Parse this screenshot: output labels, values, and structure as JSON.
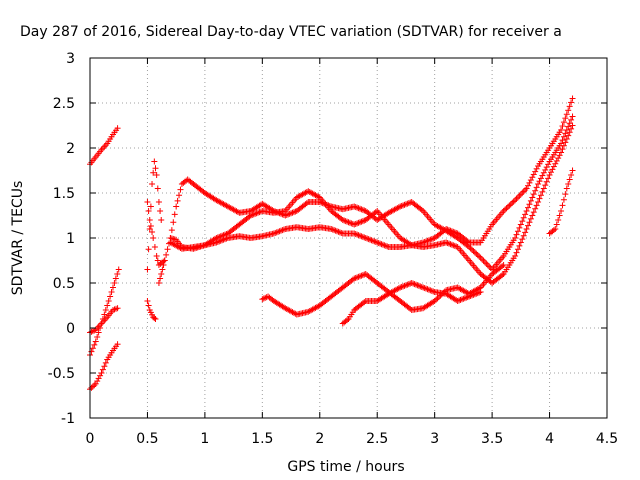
{
  "chart_data": {
    "type": "scatter",
    "title": "Day 287 of 2016, Sidereal Day-to-day VTEC variation (SDTVAR) for receiver a",
    "xlabel": "GPS time / hours",
    "ylabel": "SDTVAR / TECUs",
    "xlim": [
      0,
      4.5
    ],
    "ylim": [
      -1,
      3
    ],
    "xticks": [
      "0",
      "0.5",
      "1",
      "1.5",
      "2",
      "2.5",
      "3",
      "3.5",
      "4",
      "4.5"
    ],
    "yticks": [
      "-1",
      "-0.5",
      "0",
      "0.5",
      "1",
      "1.5",
      "2",
      "2.5",
      "3"
    ],
    "grid": true,
    "marker": "+",
    "color": "#ff0000",
    "series": [
      {
        "segments": [
          [
            [
              0,
              1.82
            ],
            [
              0.05,
              1.9
            ],
            [
              0.1,
              1.98
            ],
            [
              0.15,
              2.05
            ],
            [
              0.2,
              2.15
            ],
            [
              0.24,
              2.22
            ]
          ],
          [
            [
              0,
              -0.05
            ],
            [
              0.05,
              -0.02
            ],
            [
              0.1,
              0.05
            ],
            [
              0.15,
              0.12
            ],
            [
              0.2,
              0.2
            ],
            [
              0.24,
              0.22
            ]
          ],
          [
            [
              0.5,
              0.3
            ],
            [
              0.52,
              0.2
            ],
            [
              0.55,
              0.12
            ],
            [
              0.57,
              0.1
            ]
          ],
          [
            [
              0.6,
              0.5
            ],
            [
              0.62,
              0.6
            ],
            [
              0.65,
              0.75
            ],
            [
              0.7,
              1.0
            ],
            [
              0.75,
              1.35
            ],
            [
              0.8,
              1.6
            ],
            [
              0.85,
              1.65
            ],
            [
              0.9,
              1.6
            ],
            [
              1,
              1.5
            ],
            [
              1.1,
              1.42
            ],
            [
              1.2,
              1.35
            ],
            [
              1.3,
              1.28
            ],
            [
              1.4,
              1.3
            ],
            [
              1.5,
              1.38
            ],
            [
              1.6,
              1.3
            ],
            [
              1.7,
              1.25
            ],
            [
              1.8,
              1.3
            ],
            [
              1.9,
              1.4
            ],
            [
              2,
              1.4
            ],
            [
              2.1,
              1.35
            ],
            [
              2.2,
              1.32
            ],
            [
              2.3,
              1.35
            ],
            [
              2.4,
              1.3
            ],
            [
              2.5,
              1.2
            ],
            [
              2.6,
              1.28
            ],
            [
              2.7,
              1.35
            ],
            [
              2.8,
              1.4
            ],
            [
              2.9,
              1.3
            ],
            [
              3,
              1.15
            ],
            [
              3.1,
              1.08
            ],
            [
              3.2,
              1.0
            ],
            [
              3.3,
              0.9
            ],
            [
              3.4,
              0.78
            ],
            [
              3.5,
              0.65
            ],
            [
              3.6,
              0.8
            ],
            [
              3.7,
              1.0
            ],
            [
              3.8,
              1.3
            ],
            [
              3.9,
              1.6
            ],
            [
              4,
              1.85
            ],
            [
              4.1,
              2.05
            ],
            [
              4.2,
              2.35
            ]
          ]
        ]
      },
      {
        "segments": [
          [
            [
              0,
              -0.3
            ],
            [
              0.05,
              -0.15
            ],
            [
              0.1,
              0.05
            ],
            [
              0.15,
              0.25
            ],
            [
              0.2,
              0.45
            ],
            [
              0.25,
              0.65
            ]
          ],
          [
            [
              0.5,
              0.65
            ],
            [
              0.52,
              1.1
            ],
            [
              0.54,
              1.6
            ],
            [
              0.56,
              1.85
            ],
            [
              0.58,
              1.7
            ],
            [
              0.6,
              1.4
            ],
            [
              0.62,
              1.2
            ]
          ],
          [
            [
              0.7,
              1.0
            ],
            [
              0.75,
              0.98
            ],
            [
              0.8,
              0.9
            ],
            [
              0.9,
              0.88
            ],
            [
              1,
              0.92
            ],
            [
              1.1,
              1.0
            ],
            [
              1.2,
              1.05
            ],
            [
              1.3,
              1.15
            ],
            [
              1.4,
              1.25
            ],
            [
              1.5,
              1.3
            ],
            [
              1.6,
              1.28
            ],
            [
              1.7,
              1.3
            ],
            [
              1.8,
              1.45
            ],
            [
              1.9,
              1.52
            ],
            [
              2,
              1.45
            ],
            [
              2.1,
              1.3
            ],
            [
              2.2,
              1.2
            ],
            [
              2.3,
              1.15
            ],
            [
              2.4,
              1.2
            ],
            [
              2.5,
              1.3
            ],
            [
              2.6,
              1.15
            ],
            [
              2.7,
              1.0
            ],
            [
              2.8,
              0.92
            ],
            [
              2.9,
              0.95
            ],
            [
              3,
              1.0
            ],
            [
              3.1,
              1.1
            ],
            [
              3.2,
              1.05
            ],
            [
              3.3,
              0.95
            ],
            [
              3.4,
              0.95
            ],
            [
              3.5,
              1.15
            ],
            [
              3.6,
              1.3
            ],
            [
              3.7,
              1.42
            ],
            [
              3.8,
              1.55
            ],
            [
              3.9,
              1.8
            ],
            [
              4,
              2.0
            ],
            [
              4.1,
              2.2
            ],
            [
              4.2,
              2.55
            ]
          ]
        ]
      },
      {
        "segments": [
          [
            [
              0,
              -0.68
            ],
            [
              0.05,
              -0.62
            ],
            [
              0.1,
              -0.5
            ],
            [
              0.15,
              -0.35
            ],
            [
              0.2,
              -0.25
            ],
            [
              0.24,
              -0.18
            ]
          ],
          [
            [
              0.5,
              1.4
            ],
            [
              0.52,
              1.2
            ],
            [
              0.55,
              1.0
            ],
            [
              0.58,
              0.8
            ],
            [
              0.6,
              0.7
            ],
            [
              0.65,
              0.75
            ]
          ],
          [
            [
              0.7,
              0.95
            ],
            [
              0.8,
              0.88
            ],
            [
              0.9,
              0.9
            ],
            [
              1,
              0.92
            ],
            [
              1.1,
              0.95
            ],
            [
              1.2,
              1.0
            ],
            [
              1.3,
              1.02
            ],
            [
              1.4,
              1.0
            ],
            [
              1.5,
              1.02
            ],
            [
              1.6,
              1.05
            ],
            [
              1.7,
              1.1
            ],
            [
              1.8,
              1.12
            ],
            [
              1.9,
              1.1
            ],
            [
              2,
              1.12
            ],
            [
              2.1,
              1.1
            ],
            [
              2.2,
              1.05
            ],
            [
              2.3,
              1.05
            ],
            [
              2.4,
              1.0
            ],
            [
              2.5,
              0.95
            ],
            [
              2.6,
              0.9
            ],
            [
              2.7,
              0.9
            ],
            [
              2.8,
              0.92
            ],
            [
              2.9,
              0.9
            ],
            [
              3,
              0.92
            ],
            [
              3.1,
              0.95
            ],
            [
              3.2,
              0.9
            ],
            [
              3.3,
              0.75
            ],
            [
              3.4,
              0.6
            ],
            [
              3.5,
              0.5
            ],
            [
              3.6,
              0.6
            ],
            [
              3.7,
              0.8
            ],
            [
              3.8,
              1.1
            ],
            [
              3.9,
              1.4
            ],
            [
              4,
              1.7
            ],
            [
              4.1,
              1.95
            ],
            [
              4.2,
              2.25
            ]
          ]
        ]
      },
      {
        "segments": [
          [
            [
              1.5,
              0.32
            ],
            [
              1.55,
              0.35
            ],
            [
              1.6,
              0.3
            ],
            [
              1.7,
              0.22
            ],
            [
              1.8,
              0.15
            ],
            [
              1.9,
              0.18
            ],
            [
              2,
              0.25
            ],
            [
              2.1,
              0.35
            ],
            [
              2.2,
              0.45
            ],
            [
              2.3,
              0.55
            ],
            [
              2.4,
              0.6
            ],
            [
              2.5,
              0.5
            ],
            [
              2.6,
              0.4
            ],
            [
              2.7,
              0.3
            ],
            [
              2.8,
              0.2
            ],
            [
              2.9,
              0.22
            ],
            [
              3,
              0.3
            ],
            [
              3.1,
              0.42
            ],
            [
              3.2,
              0.45
            ],
            [
              3.3,
              0.38
            ],
            [
              3.4,
              0.45
            ],
            [
              3.5,
              0.6
            ],
            [
              3.6,
              0.7
            ]
          ],
          [
            [
              2.2,
              0.05
            ],
            [
              2.25,
              0.1
            ],
            [
              2.3,
              0.2
            ],
            [
              2.4,
              0.3
            ],
            [
              2.5,
              0.3
            ],
            [
              2.6,
              0.38
            ],
            [
              2.7,
              0.45
            ],
            [
              2.8,
              0.5
            ],
            [
              2.9,
              0.45
            ],
            [
              3,
              0.4
            ],
            [
              3.1,
              0.38
            ],
            [
              3.2,
              0.3
            ],
            [
              3.3,
              0.35
            ],
            [
              3.4,
              0.4
            ]
          ],
          [
            [
              4,
              1.05
            ],
            [
              4.05,
              1.1
            ],
            [
              4.1,
              1.3
            ],
            [
              4.15,
              1.55
            ],
            [
              4.2,
              1.75
            ]
          ]
        ]
      }
    ]
  }
}
